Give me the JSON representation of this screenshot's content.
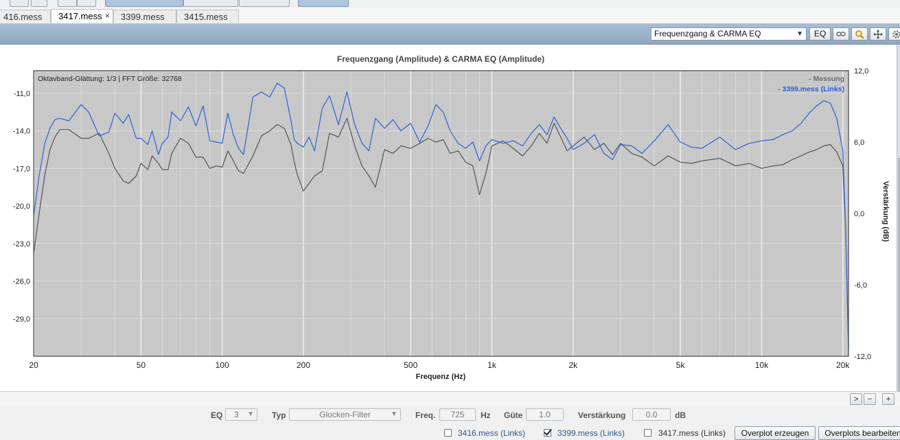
{
  "tabs": [
    {
      "label": "416.mess"
    },
    {
      "label": "3417.mess",
      "close": "×"
    },
    {
      "label": "3399.mess"
    },
    {
      "label": "3415.mess"
    }
  ],
  "toolbar": {
    "view_select": "Frequenzgang & CARMA EQ",
    "eq_button": "EQ",
    "icons": [
      "link-icon",
      "zoom-icon",
      "move-icon",
      "gear-icon"
    ]
  },
  "chart": {
    "title": "Frequenzgang (Amplitude) & CARMA EQ (Amplitude)",
    "info": "Oktavband-Glättung: 1/3 | FFT Größe: 32768",
    "legend": [
      "- Messung",
      "- 3399.mess (Links)"
    ]
  },
  "chart_data": {
    "type": "line",
    "xscale": "log",
    "xlim": [
      20,
      21000
    ],
    "x_ticks": [
      20,
      50,
      100,
      200,
      500,
      1000,
      2000,
      5000,
      10000,
      20000
    ],
    "x_tick_labels": [
      "20",
      "50",
      "100",
      "200",
      "500",
      "1k",
      "2k",
      "5k",
      "10k",
      "20k"
    ],
    "xlabel": "Frequenz (Hz)",
    "ylim_left": [
      -32.0,
      -9.2
    ],
    "y_ticks_left": [
      "-11,0",
      "-14,0",
      "-17,0",
      "-20,0",
      "-23,0",
      "-26,0",
      "-29,0"
    ],
    "y_tick_values_left": [
      -11,
      -14,
      -17,
      -20,
      -23,
      -26,
      -29
    ],
    "ylim_right": [
      -12,
      12
    ],
    "y_ticks_right": [
      "12,0",
      "6,0",
      "0,0",
      "-6,0",
      "-12,0"
    ],
    "y_tick_values_right": [
      12,
      6,
      0,
      -6,
      -12
    ],
    "ylabel_right": "Verstärkung (dB)",
    "grid": true,
    "legend_position": "top-right",
    "series": [
      {
        "name": "Messung",
        "color": "#505458",
        "x": [
          20,
          21,
          22,
          23,
          24,
          25,
          27,
          30,
          32,
          35,
          38,
          40,
          43,
          45,
          48,
          50,
          53,
          55,
          58,
          60,
          63,
          65,
          70,
          75,
          80,
          85,
          90,
          95,
          100,
          105,
          110,
          115,
          120,
          130,
          140,
          150,
          160,
          170,
          180,
          185,
          190,
          200,
          210,
          220,
          235,
          250,
          270,
          290,
          310,
          330,
          350,
          370,
          400,
          430,
          460,
          500,
          540,
          580,
          620,
          660,
          700,
          750,
          800,
          850,
          900,
          950,
          1000,
          1100,
          1200,
          1300,
          1400,
          1500,
          1600,
          1700,
          1800,
          1900,
          2000,
          2200,
          2400,
          2600,
          2800,
          3000,
          3300,
          3600,
          4000,
          4500,
          5000,
          5500,
          6000,
          7000,
          8000,
          9000,
          10000,
          11000,
          12000,
          13000,
          14000,
          15000,
          16000,
          17000,
          18000,
          19000,
          20000,
          20500,
          21000
        ],
        "y": [
          -23.8,
          -20.5,
          -17.5,
          -15.5,
          -14.5,
          -13.9,
          -13.9,
          -14.6,
          -14.6,
          -14.2,
          -15.8,
          -17.0,
          -18.0,
          -18.2,
          -17.6,
          -16.6,
          -17.1,
          -16.0,
          -16.6,
          -17.1,
          -17.1,
          -15.8,
          -14.6,
          -15.0,
          -16.1,
          -16.1,
          -17.0,
          -16.8,
          -16.9,
          -15.6,
          -16.4,
          -17.2,
          -17.4,
          -16.0,
          -14.4,
          -14.0,
          -13.5,
          -13.8,
          -15.1,
          -16.5,
          -17.5,
          -18.8,
          -18.2,
          -17.6,
          -17.2,
          -14.2,
          -14.5,
          -13.0,
          -15.2,
          -16.8,
          -17.6,
          -18.5,
          -15.5,
          -15.8,
          -15.2,
          -15.4,
          -15.0,
          -14.6,
          -14.9,
          -14.7,
          -15.8,
          -15.6,
          -16.5,
          -16.8,
          -19.1,
          -17.4,
          -15.2,
          -14.8,
          -15.4,
          -16.0,
          -15.2,
          -14.2,
          -15.0,
          -13.4,
          -14.5,
          -15.6,
          -15.2,
          -14.5,
          -15.5,
          -15.0,
          -15.9,
          -15.0,
          -15.8,
          -16.1,
          -16.8,
          -16.0,
          -16.5,
          -16.6,
          -16.4,
          -16.2,
          -16.8,
          -16.6,
          -17.0,
          -16.8,
          -16.7,
          -16.3,
          -16.0,
          -15.7,
          -15.5,
          -15.2,
          -15.1,
          -15.7,
          -16.8,
          -22.0,
          -31.5
        ]
      },
      {
        "name": "3399.mess (Links)",
        "color": "#2a62d6",
        "x": [
          20,
          21,
          22,
          23,
          24,
          25,
          27,
          30,
          32,
          35,
          38,
          40,
          43,
          45,
          48,
          50,
          53,
          55,
          58,
          60,
          63,
          65,
          70,
          75,
          80,
          85,
          90,
          95,
          100,
          105,
          110,
          115,
          120,
          130,
          140,
          150,
          160,
          170,
          180,
          185,
          190,
          200,
          210,
          220,
          235,
          250,
          270,
          290,
          310,
          330,
          350,
          370,
          400,
          430,
          460,
          500,
          540,
          580,
          620,
          660,
          700,
          750,
          800,
          850,
          900,
          950,
          1000,
          1100,
          1200,
          1300,
          1400,
          1500,
          1600,
          1700,
          1800,
          1900,
          2000,
          2200,
          2400,
          2600,
          2800,
          3000,
          3300,
          3600,
          4000,
          4500,
          5000,
          5500,
          6000,
          7000,
          8000,
          9000,
          10000,
          11000,
          12000,
          13000,
          14000,
          15000,
          16000,
          17000,
          18000,
          19000,
          20000,
          20500,
          21000
        ],
        "y": [
          -20.8,
          -17.5,
          -15.0,
          -13.8,
          -13.1,
          -13.0,
          -13.2,
          -11.9,
          -12.5,
          -14.4,
          -14.1,
          -12.6,
          -13.4,
          -12.7,
          -14.6,
          -14.6,
          -15.1,
          -14.0,
          -15.9,
          -15.0,
          -14.5,
          -12.5,
          -13.2,
          -12.1,
          -13.6,
          -12.0,
          -14.8,
          -14.9,
          -15.0,
          -12.6,
          -14.3,
          -15.4,
          -15.9,
          -11.3,
          -10.9,
          -11.3,
          -10.2,
          -10.6,
          -13.2,
          -14.7,
          -15.0,
          -15.3,
          -14.5,
          -15.6,
          -12.2,
          -11.2,
          -13.5,
          -10.9,
          -13.5,
          -15.0,
          -15.6,
          -13.0,
          -13.8,
          -13.1,
          -14.0,
          -13.4,
          -14.9,
          -13.6,
          -11.9,
          -12.5,
          -14.0,
          -15.0,
          -15.4,
          -14.9,
          -16.4,
          -15.2,
          -14.7,
          -15.0,
          -14.8,
          -15.2,
          -14.2,
          -13.5,
          -14.3,
          -12.9,
          -13.8,
          -14.6,
          -15.5,
          -15.0,
          -14.3,
          -15.8,
          -16.3,
          -15.1,
          -15.2,
          -15.8,
          -14.8,
          -13.5,
          -14.9,
          -15.3,
          -15.4,
          -14.5,
          -15.5,
          -15.0,
          -14.8,
          -14.7,
          -14.3,
          -14.0,
          -13.4,
          -12.6,
          -12.0,
          -11.6,
          -11.8,
          -13.0,
          -15.6,
          -22.0,
          -31.5
        ]
      }
    ]
  },
  "scrollbar": {
    "buttons": [
      ">",
      "−",
      "+"
    ]
  },
  "eq": {
    "eq_label": "EQ",
    "eq_value": "3",
    "typ_label": "Typ",
    "typ_value": "Glocken-Filter",
    "freq_label": "Freq.",
    "freq_value": "725",
    "freq_unit": "Hz",
    "guete_label": "Güte",
    "guete_value": "1.0",
    "gain_label": "Verstärkung",
    "gain_value": "0.0",
    "gain_unit": "dB"
  },
  "overplots": {
    "items": [
      {
        "label": "3416.mess (Links)",
        "checked": false
      },
      {
        "label": "3399.mess (Links)",
        "checked": true
      },
      {
        "label": "3417.mess (Links)",
        "checked": false
      }
    ],
    "create_button": "Overplot erzeugen",
    "edit_button": "Overplots bearbeiten"
  }
}
